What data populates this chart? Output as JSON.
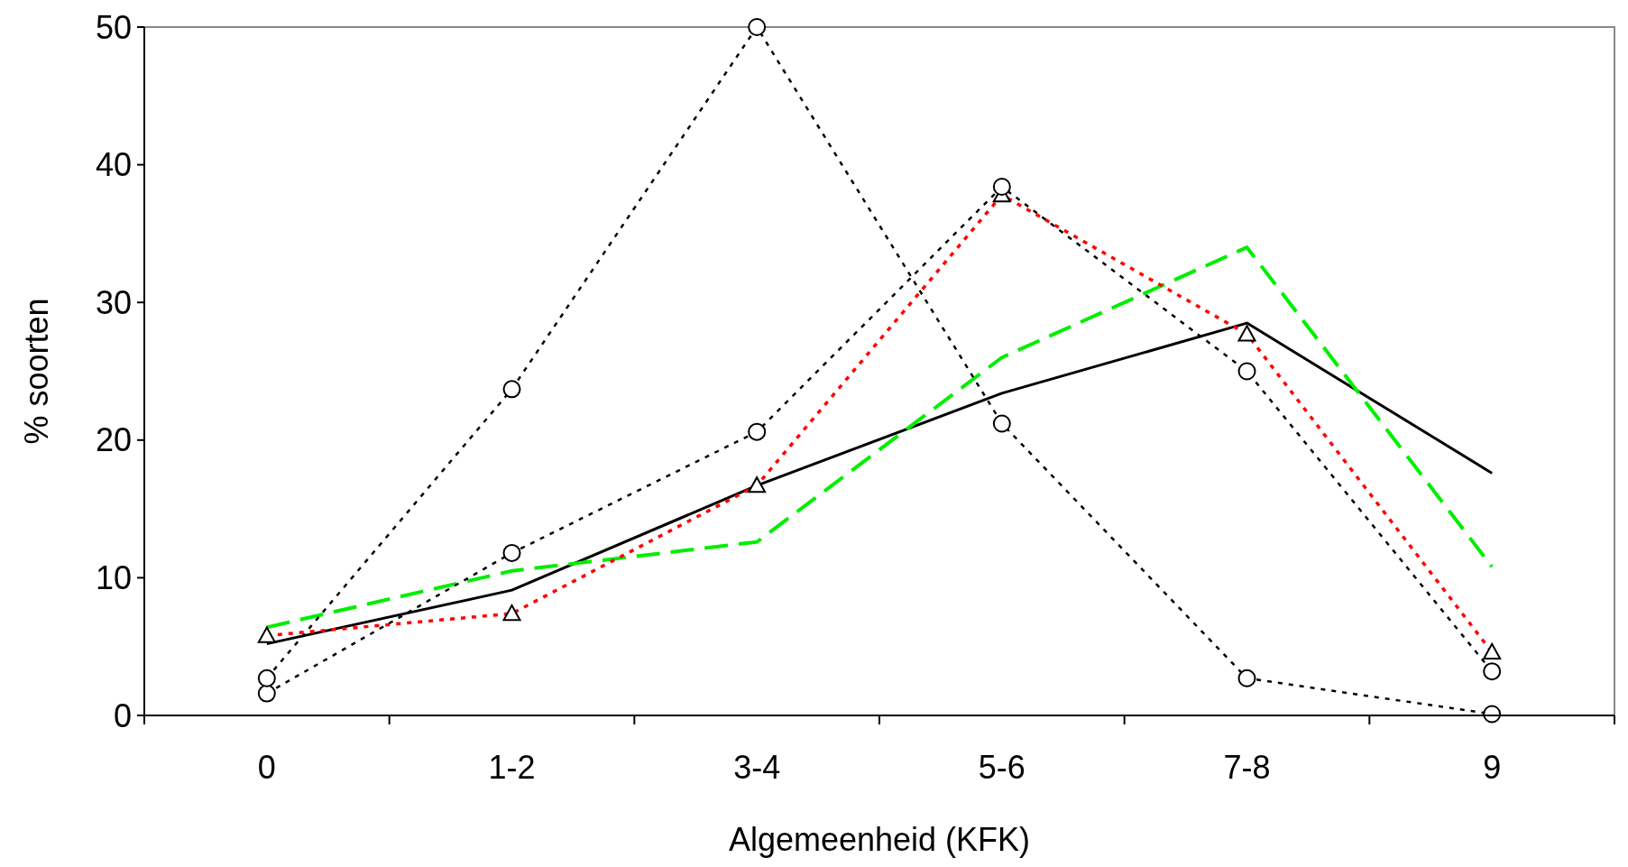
{
  "chart_data": {
    "type": "line",
    "xlabel": "Algemeenheid (KFK)",
    "ylabel": "% soorten",
    "categories": [
      "0",
      "1-2",
      "3-4",
      "5-6",
      "7-8",
      "9"
    ],
    "ylim": [
      0,
      50
    ],
    "yticks": [
      0,
      10,
      20,
      30,
      40,
      50
    ],
    "grid": false,
    "series": [
      {
        "color": "#000000",
        "line_style": "solid",
        "marker": "none",
        "values": [
          5.2,
          9.1,
          16.7,
          23.4,
          28.5,
          17.6
        ]
      },
      {
        "color": "#00ee00",
        "line_style": "dashed",
        "marker": "none",
        "values": [
          6.4,
          10.5,
          12.6,
          26.0,
          34.0,
          10.8
        ]
      },
      {
        "color": "#ff0000",
        "line_style": "dotted",
        "marker": "triangle",
        "values": [
          5.8,
          7.4,
          16.7,
          37.8,
          27.7,
          4.6
        ]
      },
      {
        "color": "#000000",
        "line_style": "dotted",
        "marker": "circle",
        "values": [
          1.6,
          11.8,
          20.6,
          38.4,
          25.0,
          3.2
        ]
      },
      {
        "color": "#000000",
        "line_style": "dotted",
        "marker": "circle",
        "values": [
          2.7,
          23.7,
          50,
          21.2,
          2.7,
          0.1
        ]
      }
    ]
  }
}
